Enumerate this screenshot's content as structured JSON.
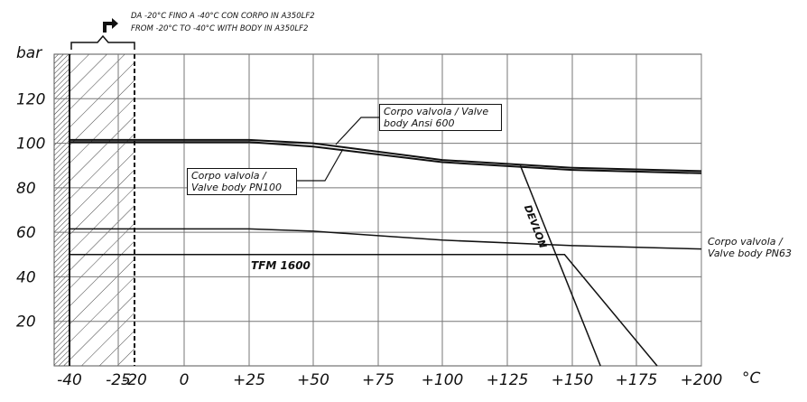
{
  "chart_data": {
    "type": "line",
    "header": [
      "DA -20°C FINO A -40°C CON CORPO IN A350LF2",
      "FROM -20°C TO -40°C WITH BODY IN A350LF2"
    ],
    "y_label": "bar",
    "x_label": "°C",
    "xlim": [
      -40,
      200
    ],
    "ylim": [
      0,
      140
    ],
    "xticks": [
      -40,
      -25,
      -20,
      0,
      {
        "value": 25,
        "label": "+25"
      },
      {
        "value": 50,
        "label": "+50"
      },
      {
        "value": 75,
        "label": "+75"
      },
      {
        "value": 100,
        "label": "+100"
      },
      {
        "value": 125,
        "label": "+125"
      },
      {
        "value": 150,
        "label": "+150"
      },
      {
        "value": 175,
        "label": "+175"
      },
      {
        "value": 200,
        "label": "+200"
      }
    ],
    "yticks": [
      20,
      40,
      60,
      80,
      100,
      120
    ],
    "grid": true,
    "series": [
      {
        "name": "Corpo valvola / Valve body Ansi 600",
        "color": "#111111",
        "x": [
          -40,
          25,
          50,
          100,
          150,
          200
        ],
        "values": [
          101.5,
          101.5,
          100,
          92.5,
          89,
          87.5
        ]
      },
      {
        "name": "Corpo valvola / Valve body PN100",
        "color": "#111111",
        "x": [
          -40,
          25,
          50,
          100,
          150,
          200
        ],
        "values": [
          100.5,
          100.5,
          98.5,
          91.5,
          88,
          86.5
        ]
      },
      {
        "name": "Corpo valvola / Valve body PN63",
        "color": "#111111",
        "x": [
          -40,
          25,
          50,
          100,
          150,
          200
        ],
        "values": [
          61.5,
          61.5,
          60.5,
          56.5,
          54,
          52.5
        ]
      },
      {
        "name": "TFM 1600",
        "color": "#111111",
        "x": [
          -40,
          147,
          183
        ],
        "values": [
          50,
          50,
          0
        ]
      },
      {
        "name": "DEVLON",
        "color": "#111111",
        "x": [
          130,
          161
        ],
        "values": [
          90,
          0
        ]
      }
    ]
  }
}
